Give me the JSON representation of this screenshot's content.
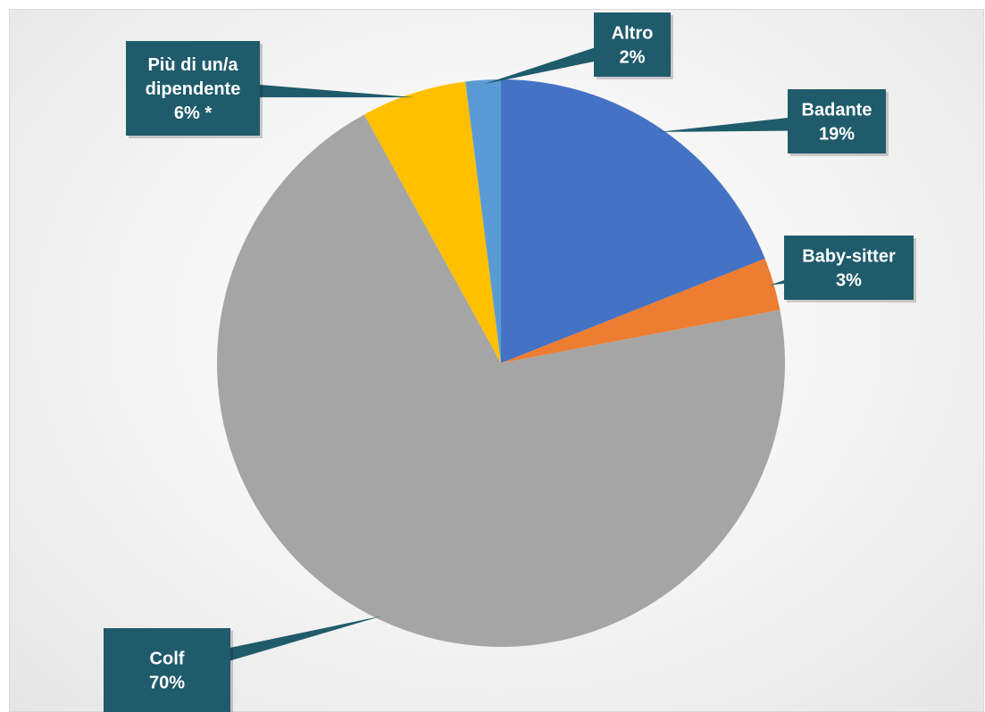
{
  "chart_data": {
    "type": "pie",
    "title": "",
    "slices": [
      {
        "name": "Badante",
        "value": 19,
        "label": "19%",
        "color": "#4472C4"
      },
      {
        "name": "Baby-sitter",
        "value": 3,
        "label": "3%",
        "color": "#ED7D31"
      },
      {
        "name": "Colf",
        "value": 70,
        "label": "70%",
        "color": "#A5A5A5"
      },
      {
        "name": "Più di un/a dipendente",
        "label_lines": [
          "Più di un/a",
          "dipendente"
        ],
        "value": 6,
        "label": "6% *",
        "color": "#FFC000"
      },
      {
        "name": "Altro",
        "value": 2,
        "label": "2%",
        "color": "#5B9BD5"
      }
    ],
    "start_angle": "12 o'clock",
    "direction": "clockwise",
    "data_labels": "callout",
    "callout_color": "#1F5B6B",
    "legend": "none"
  }
}
